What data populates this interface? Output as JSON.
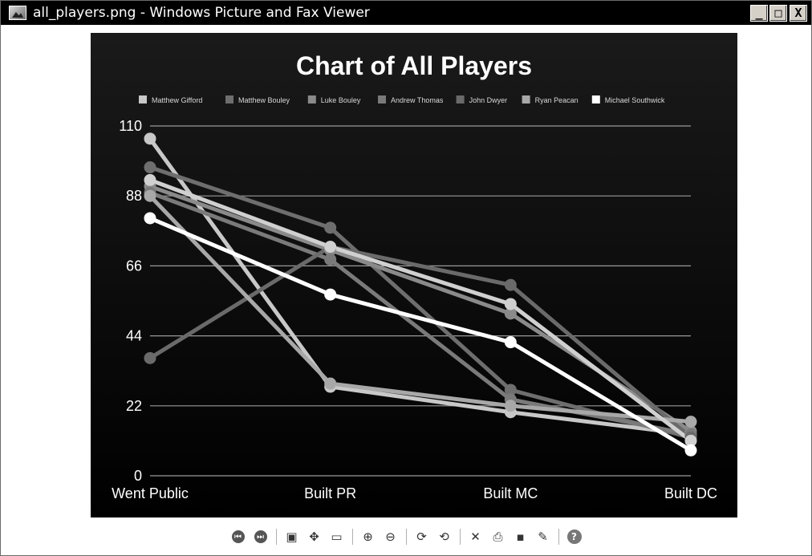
{
  "window": {
    "title": "all_players.png - Windows Picture and Fax Viewer",
    "min_label": "_",
    "max_label": "□",
    "close_label": "X"
  },
  "toolbar": {
    "items": [
      {
        "name": "previous-image-button",
        "glyph": "⏮",
        "icon": "previous-icon"
      },
      {
        "name": "next-image-button",
        "glyph": "⏭",
        "icon": "next-icon"
      },
      {
        "name": "best-fit-button",
        "glyph": "▣",
        "icon": "best-fit-icon"
      },
      {
        "name": "actual-size-button",
        "glyph": "✥",
        "icon": "actual-size-icon"
      },
      {
        "name": "slideshow-button",
        "glyph": "▭",
        "icon": "slideshow-icon"
      },
      {
        "name": "zoom-in-button",
        "glyph": "⊕",
        "icon": "zoom-in-icon"
      },
      {
        "name": "zoom-out-button",
        "glyph": "⊖",
        "icon": "zoom-out-icon"
      },
      {
        "name": "rotate-clockwise-button",
        "glyph": "⟳",
        "icon": "rotate-clockwise-icon"
      },
      {
        "name": "rotate-counterclockwise-button",
        "glyph": "⟲",
        "icon": "rotate-counterclockwise-icon"
      },
      {
        "name": "delete-button",
        "glyph": "✕",
        "icon": "delete-icon"
      },
      {
        "name": "print-button",
        "glyph": "⎙",
        "icon": "print-icon"
      },
      {
        "name": "save-button",
        "glyph": "▪",
        "icon": "save-icon"
      },
      {
        "name": "edit-button",
        "glyph": "✎",
        "icon": "edit-icon"
      },
      {
        "name": "help-button",
        "glyph": "?",
        "icon": "help-icon"
      }
    ]
  },
  "chart_data": {
    "type": "line",
    "title": "Chart of All Players",
    "categories": [
      "Went Public",
      "Built PR",
      "Built MC",
      "Built DC"
    ],
    "yticks": [
      "0",
      "22",
      "44",
      "66",
      "88",
      "110"
    ],
    "ylim": [
      0,
      110
    ],
    "grid": true,
    "legend_placement": "top",
    "background": "#000000",
    "series": [
      {
        "name": "Matthew Gifford",
        "color": "#c8c8c8",
        "values": [
          106,
          28,
          20,
          13
        ]
      },
      {
        "name": "Matthew Bouley",
        "color": "#6e6e6e",
        "values": [
          97,
          78,
          27,
          12
        ]
      },
      {
        "name": "Luke Bouley",
        "color": "#8a8a8a",
        "values": [
          91,
          71,
          51,
          14
        ]
      },
      {
        "name": "Andrew Thomas",
        "color": "#7a7a7a",
        "values": [
          89,
          68,
          24,
          13
        ]
      },
      {
        "name": "John Dwyer",
        "color": "#6a6a6a",
        "values": [
          37,
          72,
          60,
          12
        ]
      },
      {
        "name": "Ryan Peacan",
        "color": "#a8a8a8",
        "values": [
          88,
          29,
          22,
          17
        ]
      },
      {
        "name": "Michael Southwick",
        "color": "#ffffff",
        "values": [
          81,
          57,
          42,
          8
        ]
      }
    ],
    "extra_series": {
      "name": "",
      "color": "#d0d0d0",
      "values": [
        93,
        72,
        54,
        11
      ]
    }
  }
}
